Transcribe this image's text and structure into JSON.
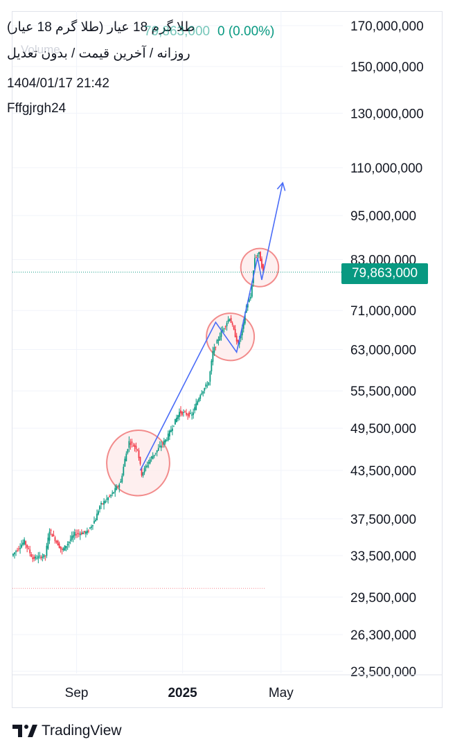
{
  "header": {
    "title": "طلا گرم 18 عیار (طلا گرم 18 عیار)",
    "price_ghost": "79,863,000",
    "change": "0 (0.00%)",
    "subtitle": "روزانه / آخرین قیمت / بدون تعدیل",
    "volume_ghost": "Volume",
    "date": "1404/01/17 21:42",
    "author": "Fffgjrgh24"
  },
  "price_badge": "79,863,000",
  "brand": {
    "name": "TradingView",
    "logo_icon": "tradingview-logo-icon"
  },
  "colors": {
    "up": "#089981",
    "down": "#f23645",
    "drawing": "#4a6cf7",
    "ellipse_stroke": "#f28b8b",
    "ellipse_fill": "#fde8e8",
    "grid": "#f0f3fa"
  },
  "chart_data": {
    "type": "candlestick",
    "title": "طلا گرم 18 عیار (طلا گرم 18 عیار)",
    "xlabel": "",
    "ylabel": "",
    "log_scale": true,
    "grid": true,
    "x_ticks": [
      {
        "label": "Sep",
        "bold": false,
        "pos": 0.153
      },
      {
        "label": "2025",
        "bold": true,
        "pos": 0.406
      },
      {
        "label": "May",
        "bold": false,
        "pos": 0.641
      }
    ],
    "y_ticks": [
      170000000,
      150000000,
      130000000,
      110000000,
      95000000,
      83000000,
      71000000,
      63000000,
      55500000,
      49500000,
      43500000,
      37500000,
      33500000,
      29500000,
      26300000,
      23500000
    ],
    "y_tick_labels": [
      "170,000,000",
      "150,000,000",
      "130,000,000",
      "110,000,000",
      "95,000,000",
      "83,000,000",
      "71,000,000",
      "63,000,000",
      "55,500,000",
      "49,500,000",
      "43,500,000",
      "37,500,000",
      "33,500,000",
      "29,500,000",
      "26,300,000",
      "23,500,000"
    ],
    "last_price": 79863000,
    "last_price_label": "79,863,000",
    "price_path": [
      [
        0.0,
        33500000
      ],
      [
        0.03,
        35000000
      ],
      [
        0.05,
        33200000
      ],
      [
        0.08,
        33500000
      ],
      [
        0.09,
        36200000
      ],
      [
        0.12,
        34000000
      ],
      [
        0.15,
        35800000
      ],
      [
        0.18,
        36000000
      ],
      [
        0.2,
        37500000
      ],
      [
        0.21,
        39000000
      ],
      [
        0.24,
        40500000
      ],
      [
        0.26,
        42000000
      ],
      [
        0.27,
        45000000
      ],
      [
        0.28,
        47500000
      ],
      [
        0.3,
        46500000
      ],
      [
        0.31,
        43000000
      ],
      [
        0.33,
        45000000
      ],
      [
        0.35,
        46500000
      ],
      [
        0.37,
        48000000
      ],
      [
        0.4,
        52000000
      ],
      [
        0.43,
        51500000
      ],
      [
        0.45,
        55000000
      ],
      [
        0.47,
        57000000
      ],
      [
        0.48,
        62500000
      ],
      [
        0.5,
        66500000
      ],
      [
        0.52,
        69500000
      ],
      [
        0.54,
        64000000
      ],
      [
        0.55,
        67000000
      ],
      [
        0.56,
        72000000
      ],
      [
        0.57,
        74000000
      ],
      [
        0.58,
        83500000
      ],
      [
        0.59,
        84500000
      ],
      [
        0.6,
        79900000
      ]
    ],
    "projection_path": [
      [
        0.305,
        43500000
      ],
      [
        0.485,
        68500000
      ],
      [
        0.535,
        62500000
      ],
      [
        0.585,
        83500000
      ],
      [
        0.595,
        78000000
      ],
      [
        0.645,
        105000000
      ]
    ],
    "highlight_ellipses": [
      {
        "cx": 0.3,
        "cy": 44500000,
        "rx": 0.075,
        "ry_low": 40500000,
        "ry_high": 49500000
      },
      {
        "cx": 0.52,
        "cy": 65500000,
        "rx": 0.057,
        "ry_low": 61000000,
        "ry_high": 70500000
      },
      {
        "cx": 0.59,
        "cy": 81000000,
        "rx": 0.045,
        "ry_low": 76500000,
        "ry_high": 86000000
      }
    ],
    "baseline_price": 30300000
  }
}
